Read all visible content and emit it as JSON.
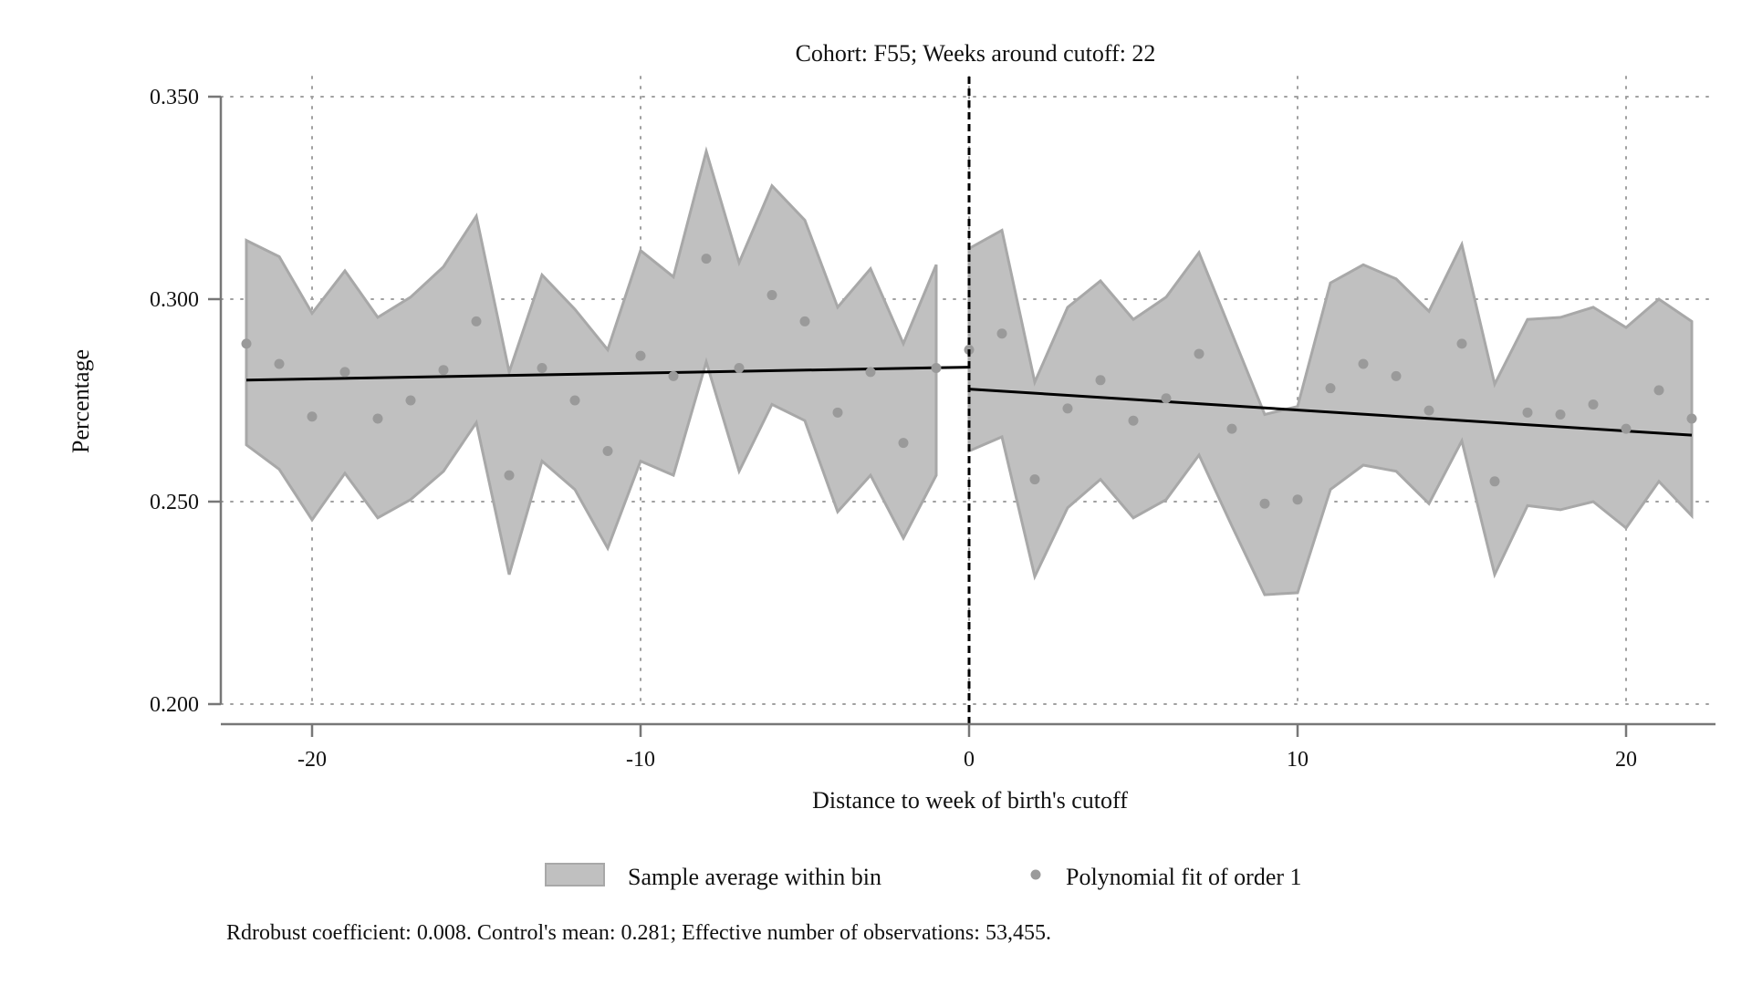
{
  "chart_data": {
    "type": "scatter",
    "title": "Cohort: F55; Weeks around cutoff: 22",
    "xlabel": "Distance to week of birth's cutoff",
    "ylabel": "Percentage",
    "xlim": [
      -23,
      23
    ],
    "ylim": [
      0.2,
      0.35
    ],
    "xticks": [
      -20,
      -10,
      0,
      10,
      20
    ],
    "xtick_labels": [
      "-20",
      "-10",
      "0",
      "10",
      "20"
    ],
    "yticks": [
      0.2,
      0.25,
      0.3,
      0.35
    ],
    "ytick_labels": [
      "0.200",
      "0.250",
      "0.300",
      "0.350"
    ],
    "grid": true,
    "cutoff": 0,
    "legend_position": "bottom",
    "legend": {
      "band_label": "Sample average within bin",
      "points_label": "Polynomial fit of order 1"
    },
    "footnote": "Rdrobust coefficient: 0.008. Control's mean: 0.281; Effective number of observations: 53,455.",
    "colors": {
      "band": "#c0c0c0",
      "band_edge": "#a8a8a8",
      "points": "#9a9a9a",
      "fit": "#000000",
      "cutoff": "#000000"
    },
    "points": {
      "x": [
        -22,
        -21,
        -20,
        -19,
        -18,
        -17,
        -16,
        -15,
        -14,
        -13,
        -12,
        -11,
        -10,
        -9,
        -8,
        -7,
        -6,
        -5,
        -4,
        -3,
        -2,
        -1,
        0,
        1,
        2,
        3,
        4,
        5,
        6,
        7,
        8,
        9,
        10,
        11,
        12,
        13,
        14,
        15,
        16,
        17,
        18,
        19,
        20,
        21,
        22
      ],
      "y": [
        0.289,
        0.284,
        0.271,
        0.282,
        0.2705,
        0.275,
        0.2825,
        0.2945,
        0.2565,
        0.283,
        0.275,
        0.2625,
        0.286,
        0.281,
        0.31,
        0.283,
        0.301,
        0.2945,
        0.272,
        0.282,
        0.2645,
        0.283,
        0.2875,
        0.2915,
        0.2555,
        0.273,
        0.28,
        0.27,
        0.2755,
        0.2865,
        0.268,
        0.2495,
        0.2505,
        0.278,
        0.284,
        0.281,
        0.2725,
        0.289,
        0.255,
        0.272,
        0.2715,
        0.274,
        0.268,
        0.2775,
        0.2705
      ]
    },
    "band": {
      "left": {
        "x": [
          -22,
          -21,
          -20,
          -19,
          -18,
          -17,
          -16,
          -15,
          -14,
          -13,
          -12,
          -11,
          -10,
          -9,
          -8,
          -7,
          -6,
          -5,
          -4,
          -3,
          -2,
          -1
        ],
        "upper": [
          0.3145,
          0.3105,
          0.2965,
          0.307,
          0.2955,
          0.3005,
          0.308,
          0.3205,
          0.282,
          0.306,
          0.2975,
          0.2875,
          0.312,
          0.3055,
          0.3365,
          0.309,
          0.328,
          0.3195,
          0.298,
          0.3075,
          0.289,
          0.3085
        ],
        "lower": [
          0.264,
          0.258,
          0.2455,
          0.257,
          0.246,
          0.2505,
          0.2575,
          0.2695,
          0.232,
          0.26,
          0.253,
          0.2385,
          0.26,
          0.2565,
          0.2845,
          0.2575,
          0.274,
          0.27,
          0.2475,
          0.2565,
          0.241,
          0.2565
        ]
      },
      "right": {
        "x": [
          0,
          1,
          2,
          3,
          4,
          5,
          6,
          7,
          8,
          9,
          10,
          11,
          12,
          13,
          14,
          15,
          16,
          17,
          18,
          19,
          20,
          21,
          22
        ],
        "upper": [
          0.3125,
          0.317,
          0.2795,
          0.298,
          0.3045,
          0.295,
          0.3005,
          0.3115,
          0.2915,
          0.2715,
          0.2735,
          0.304,
          0.3085,
          0.305,
          0.297,
          0.3135,
          0.279,
          0.295,
          0.2955,
          0.298,
          0.293,
          0.3,
          0.2945
        ],
        "lower": [
          0.2625,
          0.266,
          0.2315,
          0.2485,
          0.2555,
          0.246,
          0.2505,
          0.2615,
          0.244,
          0.227,
          0.2275,
          0.253,
          0.259,
          0.2575,
          0.2495,
          0.265,
          0.232,
          0.249,
          0.248,
          0.25,
          0.2435,
          0.255,
          0.2465
        ]
      }
    },
    "fit_lines": [
      {
        "x": [
          -22,
          0
        ],
        "y": [
          0.28,
          0.2832
        ]
      },
      {
        "x": [
          0,
          22
        ],
        "y": [
          0.2778,
          0.2664
        ]
      }
    ]
  }
}
